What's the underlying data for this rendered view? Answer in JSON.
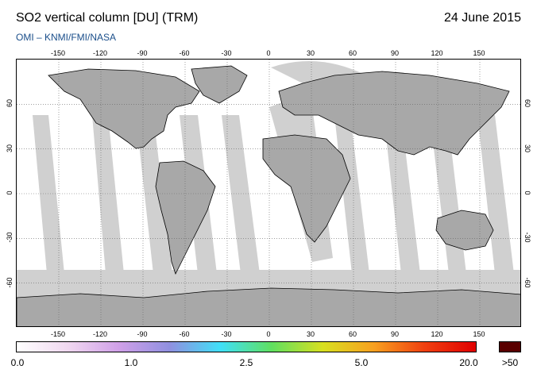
{
  "header": {
    "title": "SO2 vertical column [DU] (TRM)",
    "date": "24 June 2015",
    "subtitle": "OMI  –  KNMI/FMI/NASA"
  },
  "map": {
    "longitude_labels": [
      "-150",
      "-120",
      "-90",
      "-60",
      "-30",
      "0",
      "30",
      "60",
      "90",
      "120",
      "150"
    ],
    "longitudes": [
      -150,
      -120,
      -90,
      -60,
      -30,
      0,
      30,
      60,
      90,
      120,
      150
    ],
    "latitude_labels": [
      "60",
      "30",
      "0",
      "-30",
      "-60"
    ],
    "latitudes": [
      60,
      30,
      0,
      -30,
      -60
    ],
    "lon_range": [
      -180,
      180
    ],
    "lat_range": [
      -90,
      90
    ],
    "colors": {
      "no_data": "#d0d0d0",
      "land": "#a8a8a8",
      "coastline": "#000000",
      "gridline": "#666666"
    }
  },
  "colorbar": {
    "tick_labels": [
      "0.0",
      "1.0",
      "2.5",
      "5.0",
      "20.0"
    ],
    "tick_fractions": [
      0.0,
      0.25,
      0.5,
      0.75,
      1.0
    ],
    "overflow_label": ">50",
    "overflow_color": "#5a0000",
    "gradient_stops": [
      "#ffffff",
      "#f0d8f0",
      "#d0a0e8",
      "#9090e0",
      "#40e0f8",
      "#60e060",
      "#d8e020",
      "#f8a020",
      "#f04010",
      "#e00000"
    ]
  }
}
